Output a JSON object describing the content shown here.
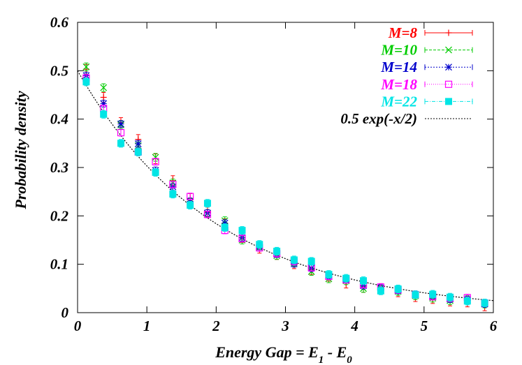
{
  "chart_data": {
    "type": "scatter",
    "xlabel": {
      "main": "Energy Gap = E",
      "sub1": "1",
      "mid": " - E",
      "sub2": "0"
    },
    "ylabel": "Probability density",
    "xlim": [
      0,
      6
    ],
    "ylim": [
      0,
      0.6
    ],
    "xticks": [
      "0",
      "1",
      "2",
      "3",
      "4",
      "5",
      "6"
    ],
    "yticks": [
      "0",
      "0.1",
      "0.2",
      "0.3",
      "0.4",
      "0.5",
      "0.6"
    ],
    "legend_position": "top-right",
    "grid": false,
    "series": [
      {
        "name": "M=8",
        "color": "#ff0000",
        "marker": "plus",
        "x": [
          0.125,
          0.375,
          0.625,
          0.875,
          1.125,
          1.375,
          1.625,
          1.875,
          2.125,
          2.375,
          2.625,
          2.875,
          3.125,
          3.375,
          3.625,
          3.875,
          4.125,
          4.375,
          4.625,
          4.875,
          5.125,
          5.375,
          5.625,
          5.875
        ],
        "y": [
          0.503,
          0.445,
          0.393,
          0.358,
          0.318,
          0.273,
          0.236,
          0.208,
          0.184,
          0.155,
          0.133,
          0.12,
          0.101,
          0.089,
          0.075,
          0.061,
          0.052,
          0.05,
          0.043,
          0.033,
          0.029,
          0.024,
          0.022,
          0.014
        ],
        "yerr": 0.01
      },
      {
        "name": "M=10",
        "color": "#00cc00",
        "marker": "cross",
        "x": [
          0.125,
          0.375,
          0.625,
          0.875,
          1.125,
          1.375,
          1.625,
          1.875,
          2.125,
          2.375,
          2.625,
          2.875,
          3.125,
          3.375,
          3.625,
          3.875,
          4.125,
          4.375,
          4.625,
          4.875,
          5.125,
          5.375,
          5.625,
          5.875
        ],
        "y": [
          0.508,
          0.465,
          0.388,
          0.345,
          0.321,
          0.268,
          0.228,
          0.205,
          0.19,
          0.15,
          0.135,
          0.118,
          0.104,
          0.085,
          0.07,
          0.066,
          0.05,
          0.048,
          0.044,
          0.035,
          0.03,
          0.025,
          0.027,
          0.018
        ],
        "yerr": 0.008
      },
      {
        "name": "M=14",
        "color": "#0000cc",
        "marker": "star",
        "x": [
          0.125,
          0.375,
          0.625,
          0.875,
          1.125,
          1.375,
          1.625,
          1.875,
          2.125,
          2.375,
          2.625,
          2.875,
          3.125,
          3.375,
          3.625,
          3.875,
          4.125,
          4.375,
          4.625,
          4.875,
          5.125,
          5.375,
          5.625,
          5.875
        ],
        "y": [
          0.49,
          0.432,
          0.39,
          0.349,
          0.294,
          0.26,
          0.23,
          0.206,
          0.185,
          0.155,
          0.137,
          0.121,
          0.101,
          0.092,
          0.077,
          0.068,
          0.056,
          0.051,
          0.046,
          0.038,
          0.034,
          0.028,
          0.027,
          0.018
        ],
        "yerr": 0.007
      },
      {
        "name": "M=18",
        "color": "#ff00ff",
        "marker": "open-square",
        "x": [
          0.125,
          0.375,
          0.625,
          0.875,
          1.125,
          1.375,
          1.625,
          1.875,
          2.125,
          2.375,
          2.625,
          2.875,
          3.125,
          3.375,
          3.625,
          3.875,
          4.125,
          4.375,
          4.625,
          4.875,
          5.125,
          5.375,
          5.625,
          5.875
        ],
        "y": [
          0.485,
          0.422,
          0.372,
          0.332,
          0.312,
          0.265,
          0.24,
          0.203,
          0.17,
          0.153,
          0.134,
          0.122,
          0.106,
          0.093,
          0.075,
          0.068,
          0.058,
          0.053,
          0.047,
          0.037,
          0.033,
          0.03,
          0.031,
          0.02
        ],
        "yerr": 0.007
      },
      {
        "name": "M=22",
        "color": "#00e5e5",
        "marker": "filled-square",
        "x": [
          0.125,
          0.375,
          0.625,
          0.875,
          1.125,
          1.375,
          1.625,
          1.875,
          2.125,
          2.375,
          2.625,
          2.875,
          3.125,
          3.375,
          3.625,
          3.875,
          4.125,
          4.375,
          4.625,
          4.875,
          5.125,
          5.375,
          5.625,
          5.875
        ],
        "y": [
          0.477,
          0.41,
          0.35,
          0.332,
          0.29,
          0.245,
          0.222,
          0.226,
          0.176,
          0.17,
          0.141,
          0.127,
          0.109,
          0.106,
          0.079,
          0.071,
          0.066,
          0.045,
          0.049,
          0.037,
          0.038,
          0.032,
          0.024,
          0.02
        ],
        "yerr": 0.008
      }
    ],
    "reference_curve": {
      "name": "0.5 exp(-x/2)",
      "color": "#000000",
      "style": "dotted",
      "amplitude": 0.5,
      "rate": 0.5
    }
  }
}
